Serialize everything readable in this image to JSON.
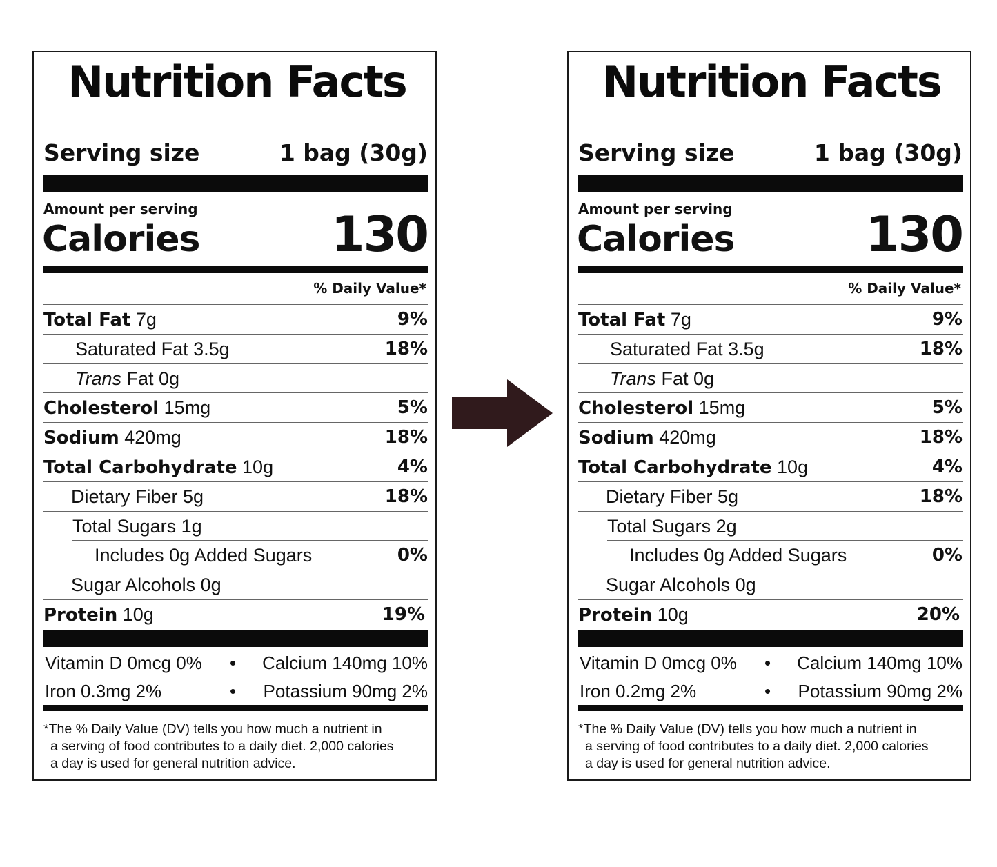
{
  "labels": [
    {
      "title": "Nutrition Facts",
      "serving_size_label": "Serving size",
      "serving_size_value": "1 bag (30g)",
      "amount_per_serving": "Amount per serving",
      "calories_label": "Calories",
      "calories_value": "130",
      "daily_value_header": "% Daily Value*",
      "nutrients": [
        {
          "name": "Total Fat",
          "amount": "7g",
          "dv": "9%"
        },
        {
          "name": "Saturated Fat 3.5g",
          "dv": "18%"
        },
        {
          "prefix": "Trans",
          "name": "Fat 0g",
          "dv": ""
        },
        {
          "name": "Cholesterol",
          "amount": "15mg",
          "dv": "5%"
        },
        {
          "name": "Sodium",
          "amount": "420mg",
          "dv": "18%"
        },
        {
          "name": "Total Carbohydrate",
          "amount": "10g",
          "dv": "4%"
        },
        {
          "name": "Dietary Fiber 5g",
          "dv": "18%"
        },
        {
          "name": "Total Sugars 1g",
          "dv": ""
        },
        {
          "name": "Includes 0g Added Sugars",
          "dv": "0%"
        },
        {
          "name": "Sugar Alcohols 0g",
          "dv": ""
        },
        {
          "name": "Protein",
          "amount": "10g",
          "dv": "19%"
        }
      ],
      "vitamins": [
        {
          "left": "Vitamin D 0mcg 0%",
          "right": "Calcium 140mg 10%"
        },
        {
          "left": "Iron 0.3mg 2%",
          "right": "Potassium 90mg 2%"
        }
      ],
      "separator": "•",
      "footnote": [
        "*The % Daily Value (DV) tells you how much a nutrient in",
        "a serving of food contributes to a daily diet. 2,000 calories",
        "a day is used for general nutrition advice."
      ]
    },
    {
      "title": "Nutrition Facts",
      "serving_size_label": "Serving size",
      "serving_size_value": "1 bag (30g)",
      "amount_per_serving": "Amount per serving",
      "calories_label": "Calories",
      "calories_value": "130",
      "daily_value_header": "% Daily Value*",
      "nutrients": [
        {
          "name": "Total Fat",
          "amount": "7g",
          "dv": "9%"
        },
        {
          "name": "Saturated Fat 3.5g",
          "dv": "18%"
        },
        {
          "prefix": "Trans",
          "name": "Fat 0g",
          "dv": ""
        },
        {
          "name": "Cholesterol",
          "amount": "15mg",
          "dv": "5%"
        },
        {
          "name": "Sodium",
          "amount": "420mg",
          "dv": "18%"
        },
        {
          "name": "Total Carbohydrate",
          "amount": "10g",
          "dv": "4%"
        },
        {
          "name": "Dietary Fiber 5g",
          "dv": "18%"
        },
        {
          "name": "Total Sugars 2g",
          "dv": ""
        },
        {
          "name": "Includes 0g Added Sugars",
          "dv": "0%"
        },
        {
          "name": "Sugar Alcohols 0g",
          "dv": ""
        },
        {
          "name": "Protein",
          "amount": "10g",
          "dv": "20%"
        }
      ],
      "vitamins": [
        {
          "left": "Vitamin D 0mcg 0%",
          "right": "Calcium 140mg 10%"
        },
        {
          "left": "Iron 0.2mg 2%",
          "right": "Potassium 90mg 2%"
        }
      ],
      "separator": "•",
      "footnote": [
        "*The % Daily Value (DV) tells you how much a nutrient in",
        "a serving of food contributes to a daily diet. 2,000 calories",
        "a day is used for general nutrition advice."
      ]
    }
  ],
  "colors": {
    "arrow": "#301a1c",
    "ink": "#0b0b0b"
  },
  "icons": {
    "arrow": "right-arrow-icon"
  }
}
